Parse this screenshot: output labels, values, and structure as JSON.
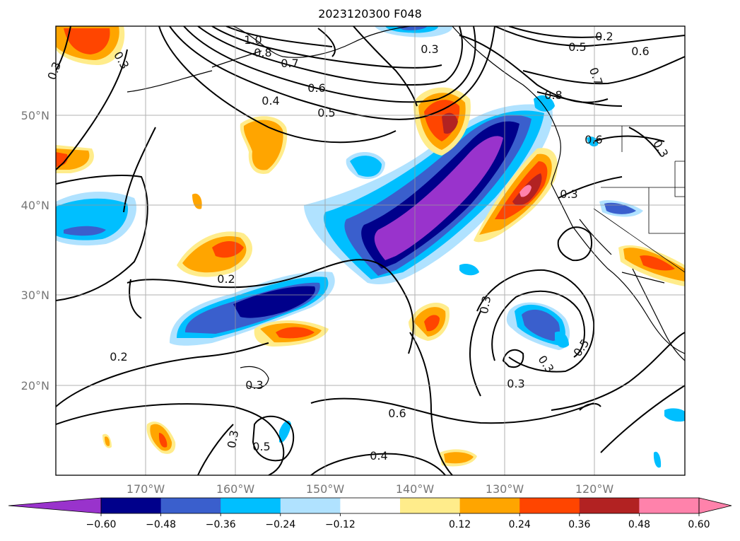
{
  "title": "2023120300 F048",
  "map": {
    "lat_labels": [
      "50°N",
      "40°N",
      "30°N",
      "20°N"
    ],
    "lon_labels": [
      "170°W",
      "160°W",
      "150°W",
      "140°W",
      "130°W",
      "120°W"
    ],
    "contour_labels": [
      "1.0",
      "0.8",
      "0.7",
      "0.6",
      "0.5",
      "0.4",
      "0.3",
      "0.2",
      "0.5",
      "0.6",
      "0.7",
      "0.8",
      "0.6",
      "0.3",
      "0.3",
      "0.3",
      "0.3",
      "0.2",
      "0.2",
      "0.3",
      "0.3",
      "0.5",
      "0.6",
      "0.4",
      "0.3",
      "0.5",
      "0.3",
      "0.3"
    ]
  },
  "colorbar": {
    "ticks": [
      "−0.60",
      "−0.48",
      "−0.36",
      "−0.24",
      "−0.12",
      "0.12",
      "0.24",
      "0.36",
      "0.48",
      "0.60"
    ],
    "colors": [
      "#9933cc",
      "#00008b",
      "#3a5fcd",
      "#00bfff",
      "#b0e2ff",
      "#ffffff",
      "#ffec8b",
      "#ffa500",
      "#ff4500",
      "#b22222",
      "#ff82ab",
      "#ff82ab"
    ]
  }
}
